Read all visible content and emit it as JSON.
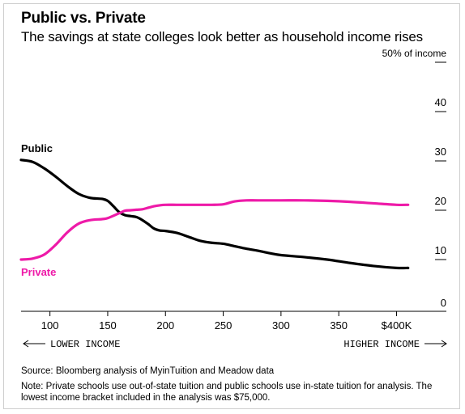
{
  "title": "Public vs. Private",
  "subtitle": "The savings at state colleges look better as household income rises",
  "source": "Source: Bloomberg analysis of MyinTuition and Meadow data",
  "note": "Note: Private schools use out-of-state tuition and public schools use in-state tuition for analysis. The lowest income bracket included in the analysis was $75,000.",
  "colors": {
    "public": "#000000",
    "private": "#ee1aa8",
    "axis": "#000000"
  },
  "chart_data": {
    "type": "line",
    "xlim": [
      75,
      420
    ],
    "ylim": [
      0,
      50
    ],
    "x_ticks": [
      {
        "value": 100,
        "label": "100"
      },
      {
        "value": 150,
        "label": "150"
      },
      {
        "value": 200,
        "label": "200"
      },
      {
        "value": 250,
        "label": "250"
      },
      {
        "value": 300,
        "label": "300"
      },
      {
        "value": 350,
        "label": "350"
      },
      {
        "value": 400,
        "label": "$400K"
      }
    ],
    "y_ticks": [
      {
        "value": 0,
        "label": "0"
      },
      {
        "value": 10,
        "label": "10"
      },
      {
        "value": 20,
        "label": "20"
      },
      {
        "value": 30,
        "label": "30"
      },
      {
        "value": 40,
        "label": "40"
      },
      {
        "value": 50,
        "label": "50% of income"
      }
    ],
    "x_annotations": {
      "left": "LOWER INCOME",
      "right": "HIGHER INCOME"
    },
    "series": [
      {
        "name": "Public",
        "key": "public",
        "x": [
          75,
          85,
          95,
          105,
          115,
          125,
          135,
          145,
          150,
          155,
          160,
          165,
          170,
          175,
          180,
          185,
          190,
          195,
          200,
          210,
          220,
          230,
          240,
          250,
          260,
          270,
          280,
          290,
          300,
          320,
          340,
          360,
          380,
          400,
          410
        ],
        "y": [
          30.2,
          29.8,
          28.5,
          26.8,
          24.9,
          23.3,
          22.5,
          22.3,
          21.9,
          20.8,
          19.6,
          19.0,
          18.8,
          18.6,
          18.0,
          17.2,
          16.3,
          15.9,
          15.8,
          15.4,
          14.6,
          13.8,
          13.4,
          13.2,
          12.7,
          12.2,
          11.8,
          11.3,
          10.9,
          10.5,
          10.0,
          9.3,
          8.7,
          8.3,
          8.3
        ]
      },
      {
        "name": "Private",
        "key": "private",
        "x": [
          75,
          85,
          95,
          105,
          115,
          125,
          135,
          145,
          150,
          160,
          165,
          170,
          175,
          180,
          185,
          190,
          195,
          200,
          210,
          220,
          230,
          240,
          250,
          260,
          270,
          280,
          300,
          320,
          340,
          360,
          380,
          400,
          410
        ],
        "y": [
          10.0,
          10.2,
          11.0,
          13.0,
          15.5,
          17.3,
          18.0,
          18.2,
          18.4,
          19.4,
          19.9,
          20.0,
          20.1,
          20.2,
          20.5,
          20.8,
          21.0,
          21.1,
          21.1,
          21.1,
          21.1,
          21.1,
          21.2,
          21.8,
          22.0,
          22.0,
          22.0,
          22.0,
          21.9,
          21.7,
          21.4,
          21.1,
          21.1
        ]
      }
    ],
    "series_label_positions": {
      "public": "above-left",
      "private": "below-left"
    },
    "grid": false,
    "legend": "inline labels at left"
  }
}
